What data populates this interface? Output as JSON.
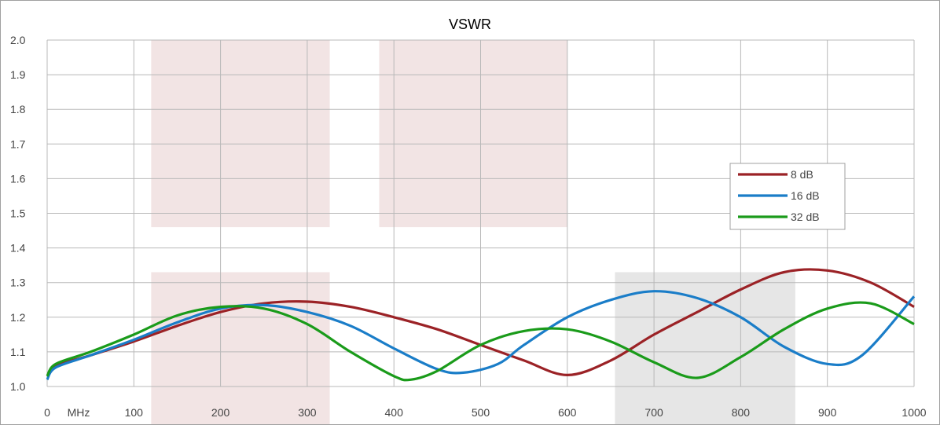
{
  "chart_data": {
    "type": "line",
    "title": "VSWR",
    "xlabel": "",
    "ylabel": "",
    "x_unit_label": "MHz",
    "xlim": [
      0,
      1000
    ],
    "ylim": [
      1.0,
      2.0
    ],
    "x_ticks": [
      0,
      100,
      200,
      300,
      400,
      500,
      600,
      700,
      800,
      900,
      1000
    ],
    "x_tick_labels": [
      "0",
      "100",
      "200",
      "300",
      "400",
      "500",
      "600",
      "700",
      "800",
      "900",
      "1000"
    ],
    "y_ticks": [
      1.0,
      1.1,
      1.2,
      1.3,
      1.4,
      1.5,
      1.6,
      1.7,
      1.8,
      1.9,
      2.0
    ],
    "y_tick_labels": [
      "1.0",
      "1.1",
      "1.2",
      "1.3",
      "1.4",
      "1.5",
      "1.6",
      "1.7",
      "1.8",
      "1.9",
      "2.0"
    ],
    "grid": true,
    "legend_position": "right",
    "shaded_regions": [
      {
        "x": [
          120,
          326
        ],
        "y": [
          1.46,
          2.0
        ],
        "color": "#f2e4e4"
      },
      {
        "x": [
          383,
          600
        ],
        "y": [
          1.46,
          2.0
        ],
        "color": "#f2e4e4"
      },
      {
        "x": [
          120,
          326
        ],
        "y": [
          0.9,
          1.33
        ],
        "color": "#f2e4e4"
      },
      {
        "x": [
          655,
          863
        ],
        "y": [
          0.9,
          1.33
        ],
        "color": "#e6e6e6"
      }
    ],
    "series": [
      {
        "name": "8 dB",
        "color": "#9b2226",
        "x": [
          0,
          10,
          50,
          100,
          150,
          200,
          250,
          300,
          350,
          400,
          450,
          500,
          550,
          600,
          650,
          700,
          750,
          800,
          850,
          900,
          950,
          1000
        ],
        "y": [
          1.03,
          1.06,
          1.09,
          1.13,
          1.175,
          1.215,
          1.24,
          1.245,
          1.23,
          1.2,
          1.165,
          1.12,
          1.075,
          1.033,
          1.075,
          1.15,
          1.215,
          1.28,
          1.33,
          1.335,
          1.3,
          1.23
        ]
      },
      {
        "name": "16 dB",
        "color": "#1a7dc8",
        "x": [
          0,
          10,
          50,
          100,
          150,
          200,
          250,
          300,
          350,
          400,
          450,
          480,
          520,
          550,
          600,
          650,
          700,
          750,
          800,
          850,
          900,
          940,
          1000
        ],
        "y": [
          1.02,
          1.055,
          1.09,
          1.135,
          1.185,
          1.225,
          1.235,
          1.215,
          1.175,
          1.11,
          1.05,
          1.04,
          1.065,
          1.12,
          1.2,
          1.25,
          1.275,
          1.255,
          1.2,
          1.115,
          1.065,
          1.09,
          1.26
        ]
      },
      {
        "name": "32 dB",
        "color": "#1a9b1a",
        "x": [
          0,
          10,
          50,
          100,
          150,
          200,
          250,
          300,
          350,
          400,
          420,
          450,
          500,
          550,
          600,
          650,
          700,
          750,
          800,
          850,
          900,
          950,
          1000
        ],
        "y": [
          1.03,
          1.065,
          1.1,
          1.15,
          1.205,
          1.23,
          1.225,
          1.18,
          1.1,
          1.03,
          1.02,
          1.045,
          1.12,
          1.16,
          1.165,
          1.13,
          1.07,
          1.025,
          1.085,
          1.165,
          1.225,
          1.24,
          1.18
        ]
      }
    ]
  }
}
